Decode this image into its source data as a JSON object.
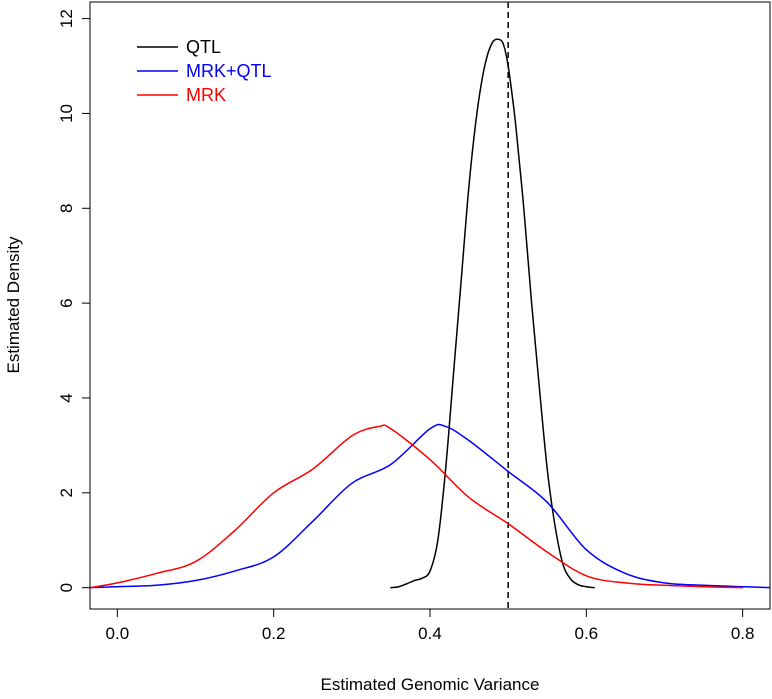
{
  "chart_data": {
    "type": "line",
    "title": "",
    "xlabel": "Estimated Genomic Variance",
    "ylabel": "Estimated Density",
    "xlim": [
      -0.035,
      0.835
    ],
    "ylim": [
      -0.45,
      12.35
    ],
    "xticks": [
      0.0,
      0.2,
      0.4,
      0.6,
      0.8
    ],
    "xtick_labels": [
      "0.0",
      "0.2",
      "0.4",
      "0.6",
      "0.8"
    ],
    "yticks": [
      0,
      2,
      4,
      6,
      8,
      10,
      12
    ],
    "ytick_labels": [
      "0",
      "2",
      "4",
      "6",
      "8",
      "10",
      "12"
    ],
    "grid": false,
    "legend_position": "top-left",
    "reference_line": {
      "x": 0.5,
      "style": "dashed",
      "color": "#000000"
    },
    "series": [
      {
        "name": "QTL",
        "color": "#000000",
        "x": [
          0.35,
          0.36,
          0.37,
          0.38,
          0.39,
          0.4,
          0.41,
          0.42,
          0.43,
          0.44,
          0.45,
          0.46,
          0.47,
          0.48,
          0.49,
          0.495,
          0.5,
          0.505,
          0.51,
          0.52,
          0.53,
          0.54,
          0.55,
          0.56,
          0.57,
          0.58,
          0.59,
          0.6,
          0.61
        ],
        "y": [
          0.0,
          0.02,
          0.08,
          0.15,
          0.2,
          0.35,
          1.0,
          2.5,
          4.5,
          6.5,
          8.5,
          10.0,
          11.0,
          11.5,
          11.55,
          11.4,
          11.0,
          10.4,
          9.7,
          8.0,
          6.0,
          4.2,
          2.5,
          1.3,
          0.5,
          0.18,
          0.06,
          0.02,
          0.0
        ]
      },
      {
        "name": "MRK+QTL",
        "color": "#0000ff",
        "x": [
          -0.035,
          0.0,
          0.05,
          0.1,
          0.15,
          0.2,
          0.25,
          0.3,
          0.35,
          0.4,
          0.42,
          0.45,
          0.5,
          0.55,
          0.6,
          0.65,
          0.7,
          0.75,
          0.8,
          0.835
        ],
        "y": [
          0.0,
          0.02,
          0.05,
          0.15,
          0.35,
          0.65,
          1.4,
          2.2,
          2.6,
          3.35,
          3.4,
          3.1,
          2.45,
          1.8,
          0.8,
          0.3,
          0.1,
          0.05,
          0.02,
          0.0
        ]
      },
      {
        "name": "MRK",
        "color": "#ff0000",
        "x": [
          -0.035,
          0.0,
          0.05,
          0.1,
          0.15,
          0.2,
          0.25,
          0.3,
          0.335,
          0.35,
          0.4,
          0.45,
          0.5,
          0.55,
          0.6,
          0.65,
          0.7,
          0.75,
          0.8
        ],
        "y": [
          0.0,
          0.1,
          0.3,
          0.55,
          1.2,
          2.0,
          2.5,
          3.2,
          3.4,
          3.35,
          2.7,
          1.9,
          1.35,
          0.75,
          0.25,
          0.1,
          0.05,
          0.02,
          0.0
        ]
      }
    ]
  }
}
